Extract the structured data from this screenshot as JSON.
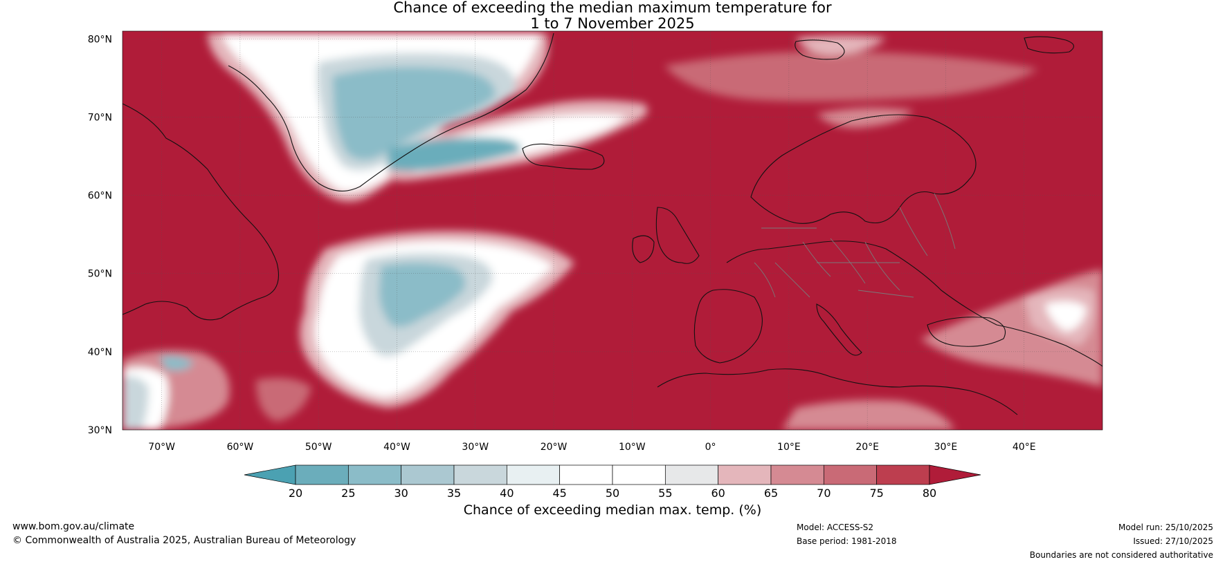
{
  "title": {
    "line1": "Chance of exceeding the median maximum temperature for",
    "line2": "1 to 7 November 2025"
  },
  "axes": {
    "lat_labels": [
      "80°N",
      "70°N",
      "60°N",
      "50°N",
      "40°N",
      "30°N"
    ],
    "lon_labels": [
      "70°W",
      "60°W",
      "50°W",
      "40°W",
      "30°W",
      "20°W",
      "10°W",
      "0°",
      "10°E",
      "20°E",
      "30°E",
      "40°E"
    ],
    "lat_range": [
      30,
      81
    ],
    "lon_range": [
      -75,
      50
    ]
  },
  "colorbar": {
    "title": "Chance of exceeding median max. temp. (%)",
    "ticks": [
      "20",
      "25",
      "30",
      "35",
      "40",
      "45",
      "50",
      "55",
      "60",
      "65",
      "70",
      "75",
      "80"
    ],
    "colors": [
      "#4ba1b2",
      "#6badbb",
      "#8bbcc8",
      "#abc8d1",
      "#c9d7dc",
      "#e8f0f2",
      "#ffffff",
      "#ffffff",
      "#e7e8e9",
      "#e4b6bb",
      "#d58a93",
      "#c96a76",
      "#bd3e4f",
      "#b01c39"
    ]
  },
  "map": {
    "background_color": "#b01c39"
  },
  "footer": {
    "url": "www.bom.gov.au/climate",
    "copyright": "© Commonwealth of Australia 2025, Australian Bureau of Meteorology",
    "model": "Model: ACCESS-S2",
    "base_period": "Base period: 1981-2018",
    "model_run": "Model run: 25/10/2025",
    "issued": "Issued: 27/10/2025",
    "disclaimer": "Boundaries are not considered authoritative"
  }
}
